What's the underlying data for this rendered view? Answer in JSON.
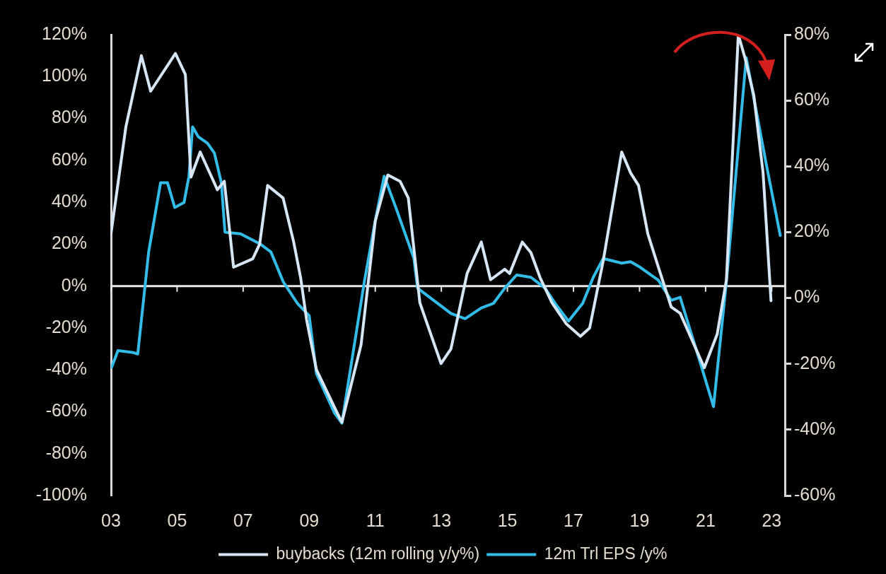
{
  "chart_data": {
    "type": "line",
    "xlim": [
      2003,
      2023.4
    ],
    "xticks": [
      {
        "value": 2003,
        "label": "03"
      },
      {
        "value": 2005,
        "label": "05"
      },
      {
        "value": 2007,
        "label": "07"
      },
      {
        "value": 2009,
        "label": "09"
      },
      {
        "value": 2011,
        "label": "11"
      },
      {
        "value": 2013,
        "label": "13"
      },
      {
        "value": 2015,
        "label": "15"
      },
      {
        "value": 2017,
        "label": "17"
      },
      {
        "value": 2019,
        "label": "19"
      },
      {
        "value": 2021,
        "label": "21"
      },
      {
        "value": 2023,
        "label": "23"
      }
    ],
    "ylim": [
      -100,
      120
    ],
    "yticks": [
      {
        "value": -100,
        "label": "-100%"
      },
      {
        "value": -80,
        "label": "-80%"
      },
      {
        "value": -60,
        "label": "-60%"
      },
      {
        "value": -40,
        "label": "-40%"
      },
      {
        "value": -20,
        "label": "-20%"
      },
      {
        "value": 0,
        "label": "0%"
      },
      {
        "value": 20,
        "label": "20%"
      },
      {
        "value": 40,
        "label": "40%"
      },
      {
        "value": 60,
        "label": "60%"
      },
      {
        "value": 80,
        "label": "80%"
      },
      {
        "value": 100,
        "label": "100%"
      },
      {
        "value": 120,
        "label": "120%"
      }
    ],
    "y2lim": [
      -60,
      80
    ],
    "y2ticks": [
      {
        "value": -60,
        "label": "-60%"
      },
      {
        "value": -40,
        "label": "-40%"
      },
      {
        "value": -20,
        "label": "-20%"
      },
      {
        "value": 0,
        "label": "0%"
      },
      {
        "value": 20,
        "label": "20%"
      },
      {
        "value": 40,
        "label": "40%"
      },
      {
        "value": 60,
        "label": "60%"
      },
      {
        "value": 80,
        "label": "80%"
      }
    ],
    "series": [
      {
        "name": "buybacks (12m rolling y/y%)",
        "color": "#d6e6f5",
        "axis": "y",
        "x": [
          2003.0,
          2003.45,
          2003.92,
          2004.2,
          2004.95,
          2005.25,
          2005.42,
          2005.7,
          2006.22,
          2006.43,
          2006.71,
          2007.29,
          2007.5,
          2007.74,
          2008.21,
          2008.53,
          2008.74,
          2008.92,
          2009.22,
          2009.86,
          2009.99,
          2010.57,
          2011.0,
          2011.38,
          2011.75,
          2012.0,
          2012.35,
          2012.99,
          2013.29,
          2013.78,
          2014.21,
          2014.49,
          2014.92,
          2015.07,
          2015.45,
          2015.71,
          2015.99,
          2016.35,
          2016.78,
          2017.21,
          2017.49,
          2017.9,
          2018.46,
          2018.73,
          2018.97,
          2019.25,
          2019.57,
          2019.96,
          2020.23,
          2020.51,
          2020.96,
          2021.35,
          2021.63,
          2021.99,
          2022.19,
          2022.46,
          2022.74,
          2022.98
        ],
        "values": [
          25,
          76,
          110,
          93,
          111,
          101,
          52,
          64,
          46,
          50,
          9,
          13,
          20,
          48,
          42,
          21,
          4,
          -16,
          -40,
          -61,
          -65,
          -28,
          31,
          53,
          50,
          42,
          -8,
          -37,
          -30,
          6,
          21,
          3,
          8,
          6,
          21,
          16,
          4,
          -8,
          -18,
          -24,
          -20,
          12,
          64,
          54,
          48,
          25,
          9,
          -10,
          -13,
          -23,
          -39,
          -23,
          3,
          120,
          109,
          91,
          54,
          -7
        ]
      },
      {
        "name": "12m Trl EPS /y%",
        "color": "#33bce8",
        "axis": "y2",
        "x": [
          2003.02,
          2003.21,
          2003.64,
          2003.81,
          2004.14,
          2004.5,
          2004.71,
          2004.93,
          2005.21,
          2005.36,
          2005.47,
          2005.64,
          2005.92,
          2006.13,
          2006.34,
          2006.45,
          2006.92,
          2007.5,
          2007.84,
          2008.21,
          2008.64,
          2009.0,
          2009.22,
          2009.77,
          2009.99,
          2010.67,
          2011.0,
          2011.27,
          2011.64,
          2012.17,
          2012.28,
          2013.29,
          2013.72,
          2014.21,
          2014.58,
          2014.92,
          2015.28,
          2015.71,
          2016.14,
          2016.5,
          2016.85,
          2017.28,
          2017.6,
          2017.9,
          2018.46,
          2018.73,
          2019.01,
          2019.57,
          2019.96,
          2020.23,
          2020.51,
          2020.88,
          2021.24,
          2021.63,
          2022.23,
          2022.55,
          2022.83,
          2023.26
        ],
        "values": [
          -21,
          -16,
          -16.5,
          -17,
          14,
          35,
          35,
          27.5,
          29,
          37,
          52,
          49,
          47,
          44,
          35,
          20,
          19.5,
          16.5,
          14,
          5,
          -1.6,
          -5.4,
          -23,
          -35,
          -38,
          5,
          23.5,
          37,
          27,
          12,
          3,
          -4.7,
          -6.3,
          -3,
          -1.6,
          3,
          7,
          6.3,
          3,
          -2.4,
          -7,
          -1.6,
          6.3,
          12,
          10.6,
          11,
          9.4,
          5.4,
          -0.7,
          0.2,
          -9,
          -21,
          -33,
          5,
          73,
          56,
          41,
          19
        ]
      }
    ],
    "ref_lines": [
      {
        "axis": "y",
        "value": 0,
        "color": "#e8e8e8"
      }
    ],
    "grid": false,
    "legend": "bottom",
    "marker": "none",
    "line_style": "solid"
  }
}
